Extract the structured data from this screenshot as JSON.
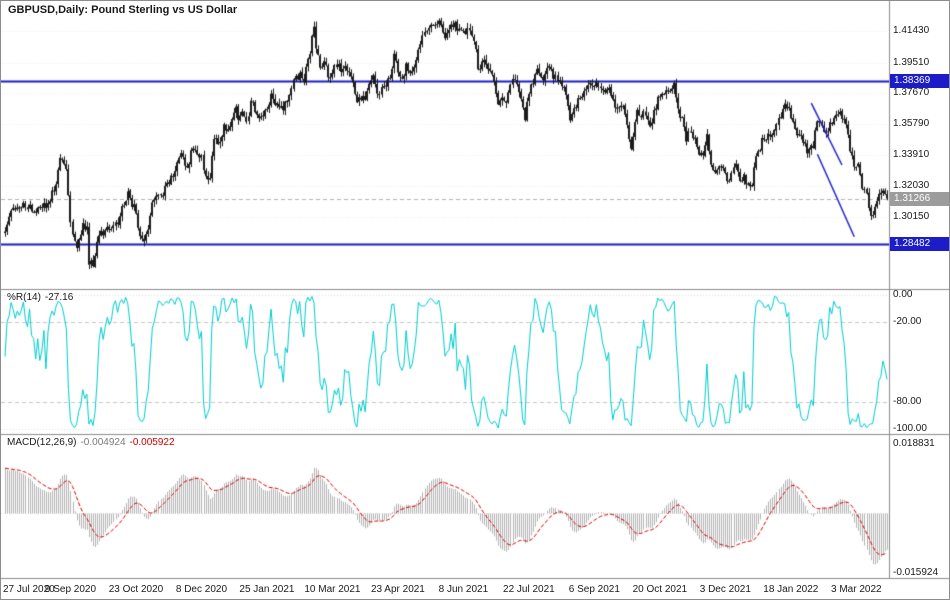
{
  "window": {
    "title": "GBPUSD,Daily:  Pound Sterling vs US Dollar"
  },
  "colors": {
    "candle": "#1b1b1b",
    "hline_blue": "#1c1cc8",
    "trend_blue": "#2424cc",
    "current_line": "#b4b4b4",
    "wpr_line": "#00cccc",
    "macd_hist": "#b4b4b4",
    "macd_signal": "#d40000",
    "grid": "#ededed",
    "level_dash": "#c8c8c8",
    "panel_border": "#8c8c8c",
    "badge_current_bg": "#9c9c9c",
    "axis_text": "#1a1a1a"
  },
  "price_panel": {
    "symbol": "GBPUSD",
    "timeframe": "Daily",
    "description": "Pound Sterling vs US Dollar",
    "range": {
      "top": 1.43,
      "bottom": 1.259
    },
    "grid": [
      {
        "value": 1.4143,
        "label": "1.41430"
      },
      {
        "value": 1.3951,
        "label": "1.39510"
      },
      {
        "value": 1.3767,
        "label": "1.37670"
      },
      {
        "value": 1.3579,
        "label": "1.35790"
      },
      {
        "value": 1.3391,
        "label": "1.33910"
      },
      {
        "value": 1.3203,
        "label": "1.32030"
      },
      {
        "value": 1.3015,
        "label": "1.30150"
      }
    ],
    "hlines": [
      {
        "value": 1.38369,
        "label": "1.38369"
      },
      {
        "value": 1.28482,
        "label": "1.28482"
      }
    ],
    "current": {
      "value": 1.31266,
      "label": "1.31266"
    },
    "trendlines": [
      [
        394,
        1.3705,
        409,
        1.333
      ],
      [
        397,
        1.3395,
        415,
        1.2895
      ]
    ]
  },
  "wpr_panel": {
    "label": "%R(14)",
    "value": "-27.16",
    "period": 14,
    "range": {
      "top": 2,
      "bottom": -102
    },
    "levels": [
      {
        "value": 0,
        "label": "0.00",
        "style": "dot"
      },
      {
        "value": -20,
        "label": "-20.00",
        "style": "dash"
      },
      {
        "value": -80,
        "label": "-80.00",
        "style": "dash"
      },
      {
        "value": -100,
        "label": "-100.00",
        "style": "dot"
      }
    ]
  },
  "macd_panel": {
    "label": "MACD(12,26,9)",
    "value_main": "-0.004924",
    "value_signal": "-0.005922",
    "fast": 12,
    "slow": 26,
    "signal": 9,
    "range": {
      "top": 0.018831,
      "bottom": -0.015924
    },
    "axis_labels": [
      {
        "pos": "top",
        "label": "0.018831"
      },
      {
        "pos": "bottom",
        "label": "-0.015924"
      }
    ]
  },
  "x_axis": {
    "label_bars": [
      0,
      32,
      64,
      96,
      128,
      160,
      192,
      224,
      256,
      288,
      320,
      352,
      384,
      416
    ],
    "labels": [
      "27 Jul 2020",
      "9 Sep 2020",
      "23 Oct 2020",
      "8 Dec 2020",
      "25 Jan 2021",
      "10 Mar 2021",
      "23 Apr 2021",
      "8 Jun 2021",
      "22 Jul 2021",
      "6 Sep 2021",
      "20 Oct 2021",
      "3 Dec 2021",
      "18 Jan 2022",
      "3 Mar 2022"
    ]
  },
  "chart_data": {
    "type": "candlestick",
    "title": "GBPUSD Daily — Pound Sterling vs US Dollar",
    "bars": 432,
    "last_close": 1.31266,
    "ylim": [
      1.259,
      1.43
    ],
    "close_anchors": [
      [
        0,
        1.295
      ],
      [
        3,
        1.306
      ],
      [
        6,
        1.309
      ],
      [
        9,
        1.313
      ],
      [
        13,
        1.307
      ],
      [
        17,
        1.3095
      ],
      [
        21,
        1.3065
      ],
      [
        24,
        1.318
      ],
      [
        27,
        1.3385
      ],
      [
        28,
        1.335
      ],
      [
        30,
        1.328
      ],
      [
        32,
        1.3
      ],
      [
        34,
        1.285
      ],
      [
        35,
        1.2815
      ],
      [
        38,
        1.296
      ],
      [
        40,
        1.294
      ],
      [
        41,
        1.2735
      ],
      [
        43,
        1.2745
      ],
      [
        45,
        1.287
      ],
      [
        47,
        1.2935
      ],
      [
        49,
        1.291
      ],
      [
        52,
        1.293
      ],
      [
        55,
        1.295
      ],
      [
        58,
        1.308
      ],
      [
        60,
        1.314
      ],
      [
        62,
        1.31
      ],
      [
        64,
        1.304
      ],
      [
        66,
        1.2935
      ],
      [
        68,
        1.2925
      ],
      [
        70,
        1.299
      ],
      [
        72,
        1.315
      ],
      [
        74,
        1.314
      ],
      [
        77,
        1.3185
      ],
      [
        80,
        1.324
      ],
      [
        82,
        1.327
      ],
      [
        84,
        1.334
      ],
      [
        86,
        1.338
      ],
      [
        88,
        1.332
      ],
      [
        90,
        1.336
      ],
      [
        92,
        1.344
      ],
      [
        94,
        1.338
      ],
      [
        96,
        1.335
      ],
      [
        98,
        1.323
      ],
      [
        100,
        1.329
      ],
      [
        102,
        1.351
      ],
      [
        104,
        1.35
      ],
      [
        106,
        1.3495
      ],
      [
        107,
        1.356
      ],
      [
        109,
        1.357
      ],
      [
        111,
        1.362
      ],
      [
        113,
        1.367
      ],
      [
        114,
        1.3565
      ],
      [
        116,
        1.359
      ],
      [
        118,
        1.356
      ],
      [
        120,
        1.368
      ],
      [
        122,
        1.364
      ],
      [
        124,
        1.359
      ],
      [
        126,
        1.3655
      ],
      [
        128,
        1.367
      ],
      [
        130,
        1.3735
      ],
      [
        132,
        1.369
      ],
      [
        134,
        1.366
      ],
      [
        136,
        1.364
      ],
      [
        138,
        1.37
      ],
      [
        140,
        1.381
      ],
      [
        142,
        1.384
      ],
      [
        144,
        1.39
      ],
      [
        146,
        1.386
      ],
      [
        148,
        1.397
      ],
      [
        150,
        1.41
      ],
      [
        151,
        1.414
      ],
      [
        152,
        1.4015
      ],
      [
        154,
        1.393
      ],
      [
        156,
        1.3955
      ],
      [
        158,
        1.389
      ],
      [
        160,
        1.393
      ],
      [
        162,
        1.3925
      ],
      [
        164,
        1.3905
      ],
      [
        166,
        1.389
      ],
      [
        168,
        1.387
      ],
      [
        170,
        1.379
      ],
      [
        172,
        1.369
      ],
      [
        174,
        1.3735
      ],
      [
        176,
        1.376
      ],
      [
        178,
        1.383
      ],
      [
        180,
        1.3905
      ],
      [
        182,
        1.374
      ],
      [
        184,
        1.378
      ],
      [
        186,
        1.375
      ],
      [
        188,
        1.384
      ],
      [
        190,
        1.399
      ],
      [
        192,
        1.388
      ],
      [
        194,
        1.3905
      ],
      [
        196,
        1.394
      ],
      [
        198,
        1.39
      ],
      [
        200,
        1.389
      ],
      [
        202,
        1.4005
      ],
      [
        204,
        1.412
      ],
      [
        206,
        1.409
      ],
      [
        208,
        1.414
      ],
      [
        210,
        1.4155
      ],
      [
        212,
        1.4188
      ],
      [
        214,
        1.4135
      ],
      [
        216,
        1.4118
      ],
      [
        218,
        1.421
      ],
      [
        219,
        1.4152
      ],
      [
        221,
        1.416
      ],
      [
        223,
        1.4155
      ],
      [
        225,
        1.411
      ],
      [
        227,
        1.4135
      ],
      [
        229,
        1.411
      ],
      [
        231,
        1.392
      ],
      [
        233,
        1.394
      ],
      [
        235,
        1.3945
      ],
      [
        237,
        1.3925
      ],
      [
        239,
        1.388
      ],
      [
        241,
        1.3765
      ],
      [
        243,
        1.38
      ],
      [
        245,
        1.378
      ],
      [
        247,
        1.3855
      ],
      [
        249,
        1.3885
      ],
      [
        251,
        1.38
      ],
      [
        253,
        1.3705
      ],
      [
        254,
        1.3625
      ],
      [
        256,
        1.3765
      ],
      [
        258,
        1.382
      ],
      [
        260,
        1.3875
      ],
      [
        262,
        1.39
      ],
      [
        264,
        1.389
      ],
      [
        266,
        1.3925
      ],
      [
        268,
        1.387
      ],
      [
        270,
        1.384
      ],
      [
        272,
        1.384
      ],
      [
        274,
        1.3755
      ],
      [
        276,
        1.3635
      ],
      [
        278,
        1.3725
      ],
      [
        280,
        1.376
      ],
      [
        282,
        1.3765
      ],
      [
        284,
        1.3755
      ],
      [
        286,
        1.377
      ],
      [
        288,
        1.3835
      ],
      [
        290,
        1.384
      ],
      [
        292,
        1.3835
      ],
      [
        294,
        1.3805
      ],
      [
        296,
        1.3735
      ],
      [
        298,
        1.3655
      ],
      [
        300,
        1.3655
      ],
      [
        302,
        1.372
      ],
      [
        304,
        1.3535
      ],
      [
        306,
        1.343
      ],
      [
        307,
        1.3475
      ],
      [
        309,
        1.361
      ],
      [
        311,
        1.358
      ],
      [
        313,
        1.3615
      ],
      [
        315,
        1.359
      ],
      [
        317,
        1.367
      ],
      [
        319,
        1.3745
      ],
      [
        321,
        1.382
      ],
      [
        323,
        1.3795
      ],
      [
        325,
        1.377
      ],
      [
        327,
        1.379
      ],
      [
        329,
        1.368
      ],
      [
        331,
        1.3615
      ],
      [
        333,
        1.3495
      ],
      [
        335,
        1.356
      ],
      [
        337,
        1.348
      ],
      [
        339,
        1.3415
      ],
      [
        341,
        1.3435
      ],
      [
        343,
        1.3495
      ],
      [
        345,
        1.3375
      ],
      [
        347,
        1.331
      ],
      [
        349,
        1.3335
      ],
      [
        351,
        1.3275
      ],
      [
        353,
        1.323
      ],
      [
        355,
        1.328
      ],
      [
        357,
        1.334
      ],
      [
        359,
        1.321
      ],
      [
        361,
        1.326
      ],
      [
        363,
        1.3225
      ],
      [
        365,
        1.325
      ],
      [
        367,
        1.342
      ],
      [
        369,
        1.344
      ],
      [
        371,
        1.35
      ],
      [
        373,
        1.353
      ],
      [
        375,
        1.353
      ],
      [
        377,
        1.359
      ],
      [
        379,
        1.363
      ],
      [
        381,
        1.37
      ],
      [
        383,
        1.3675
      ],
      [
        385,
        1.3595
      ],
      [
        387,
        1.3555
      ],
      [
        389,
        1.355
      ],
      [
        391,
        1.346
      ],
      [
        393,
        1.3415
      ],
      [
        395,
        1.3445
      ],
      [
        397,
        1.36
      ],
      [
        399,
        1.3545
      ],
      [
        401,
        1.353
      ],
      [
        403,
        1.356
      ],
      [
        405,
        1.359
      ],
      [
        407,
        1.3605
      ],
      [
        409,
        1.3605
      ],
      [
        411,
        1.354
      ],
      [
        413,
        1.338
      ],
      [
        415,
        1.332
      ],
      [
        417,
        1.334
      ],
      [
        419,
        1.318
      ],
      [
        421,
        1.31
      ],
      [
        423,
        1.3035
      ],
      [
        425,
        1.308
      ],
      [
        427,
        1.315
      ],
      [
        429,
        1.3175
      ],
      [
        431,
        1.31266
      ]
    ],
    "indicators": [
      {
        "type": "williams_r",
        "period": 14,
        "last": -27.16,
        "levels": [
          -20,
          -80
        ]
      },
      {
        "type": "macd",
        "fast": 12,
        "slow": 26,
        "signal": 9,
        "last": [
          -0.004924,
          -0.005922
        ],
        "ylim": [
          -0.015924,
          0.018831
        ]
      }
    ]
  }
}
